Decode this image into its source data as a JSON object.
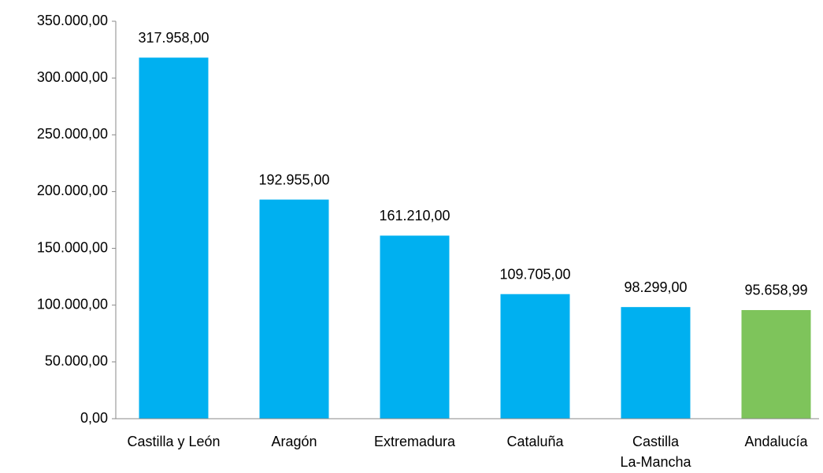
{
  "chart_data": {
    "type": "bar",
    "categories": [
      "Castilla y León",
      "Aragón",
      "Extremadura",
      "Cataluña",
      "Castilla La-Mancha",
      "Andalucía"
    ],
    "values": [
      317958,
      192955,
      161210,
      109705,
      98299,
      95658.99
    ],
    "value_labels": [
      "317.958,00",
      "192.955,00",
      "161.210,00",
      "109.705,00",
      "98.299,00",
      "95.658,99"
    ],
    "colors": [
      "#00b0f0",
      "#00b0f0",
      "#00b0f0",
      "#00b0f0",
      "#00b0f0",
      "#7ec45b"
    ],
    "ylim": [
      0,
      350000
    ],
    "yticks": [
      {
        "value": 0,
        "label": "0,00"
      },
      {
        "value": 50000,
        "label": "50.000,00"
      },
      {
        "value": 100000,
        "label": "100.000,00"
      },
      {
        "value": 150000,
        "label": "150.000,00"
      },
      {
        "value": 200000,
        "label": "200.000,00"
      },
      {
        "value": 250000,
        "label": "250.000,00"
      },
      {
        "value": 300000,
        "label": "300.000,00"
      },
      {
        "value": 350000,
        "label": "350.000,00"
      }
    ],
    "grid": false
  }
}
